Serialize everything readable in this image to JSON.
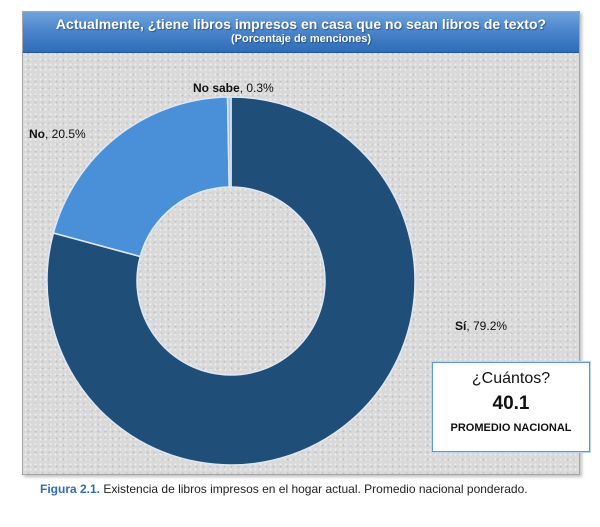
{
  "chart_data": {
    "type": "donut",
    "title": "Actualmente, ¿tiene libros impresos en casa que no sean libros de texto?",
    "subtitle": "(Porcentaje de menciones)",
    "slices": [
      {
        "label": "Sí",
        "value": 79.2,
        "display": "79.2%",
        "color": "#1f4e79"
      },
      {
        "label": "No",
        "value": 20.5,
        "display": "20.5%",
        "color": "#4a90d9"
      },
      {
        "label": "No sabe",
        "value": 0.3,
        "display": "0.3%",
        "color": "#9dc3e6"
      }
    ],
    "start_at": "top",
    "direction": "clockwise"
  },
  "average_box": {
    "question": "¿Cuántos?",
    "value": "40.1",
    "label": "PROMEDIO NACIONAL"
  },
  "caption": {
    "figure": "Figura 2.1.",
    "text": " Existencia de libros impresos en el hogar actual. Promedio nacional ponderado."
  }
}
